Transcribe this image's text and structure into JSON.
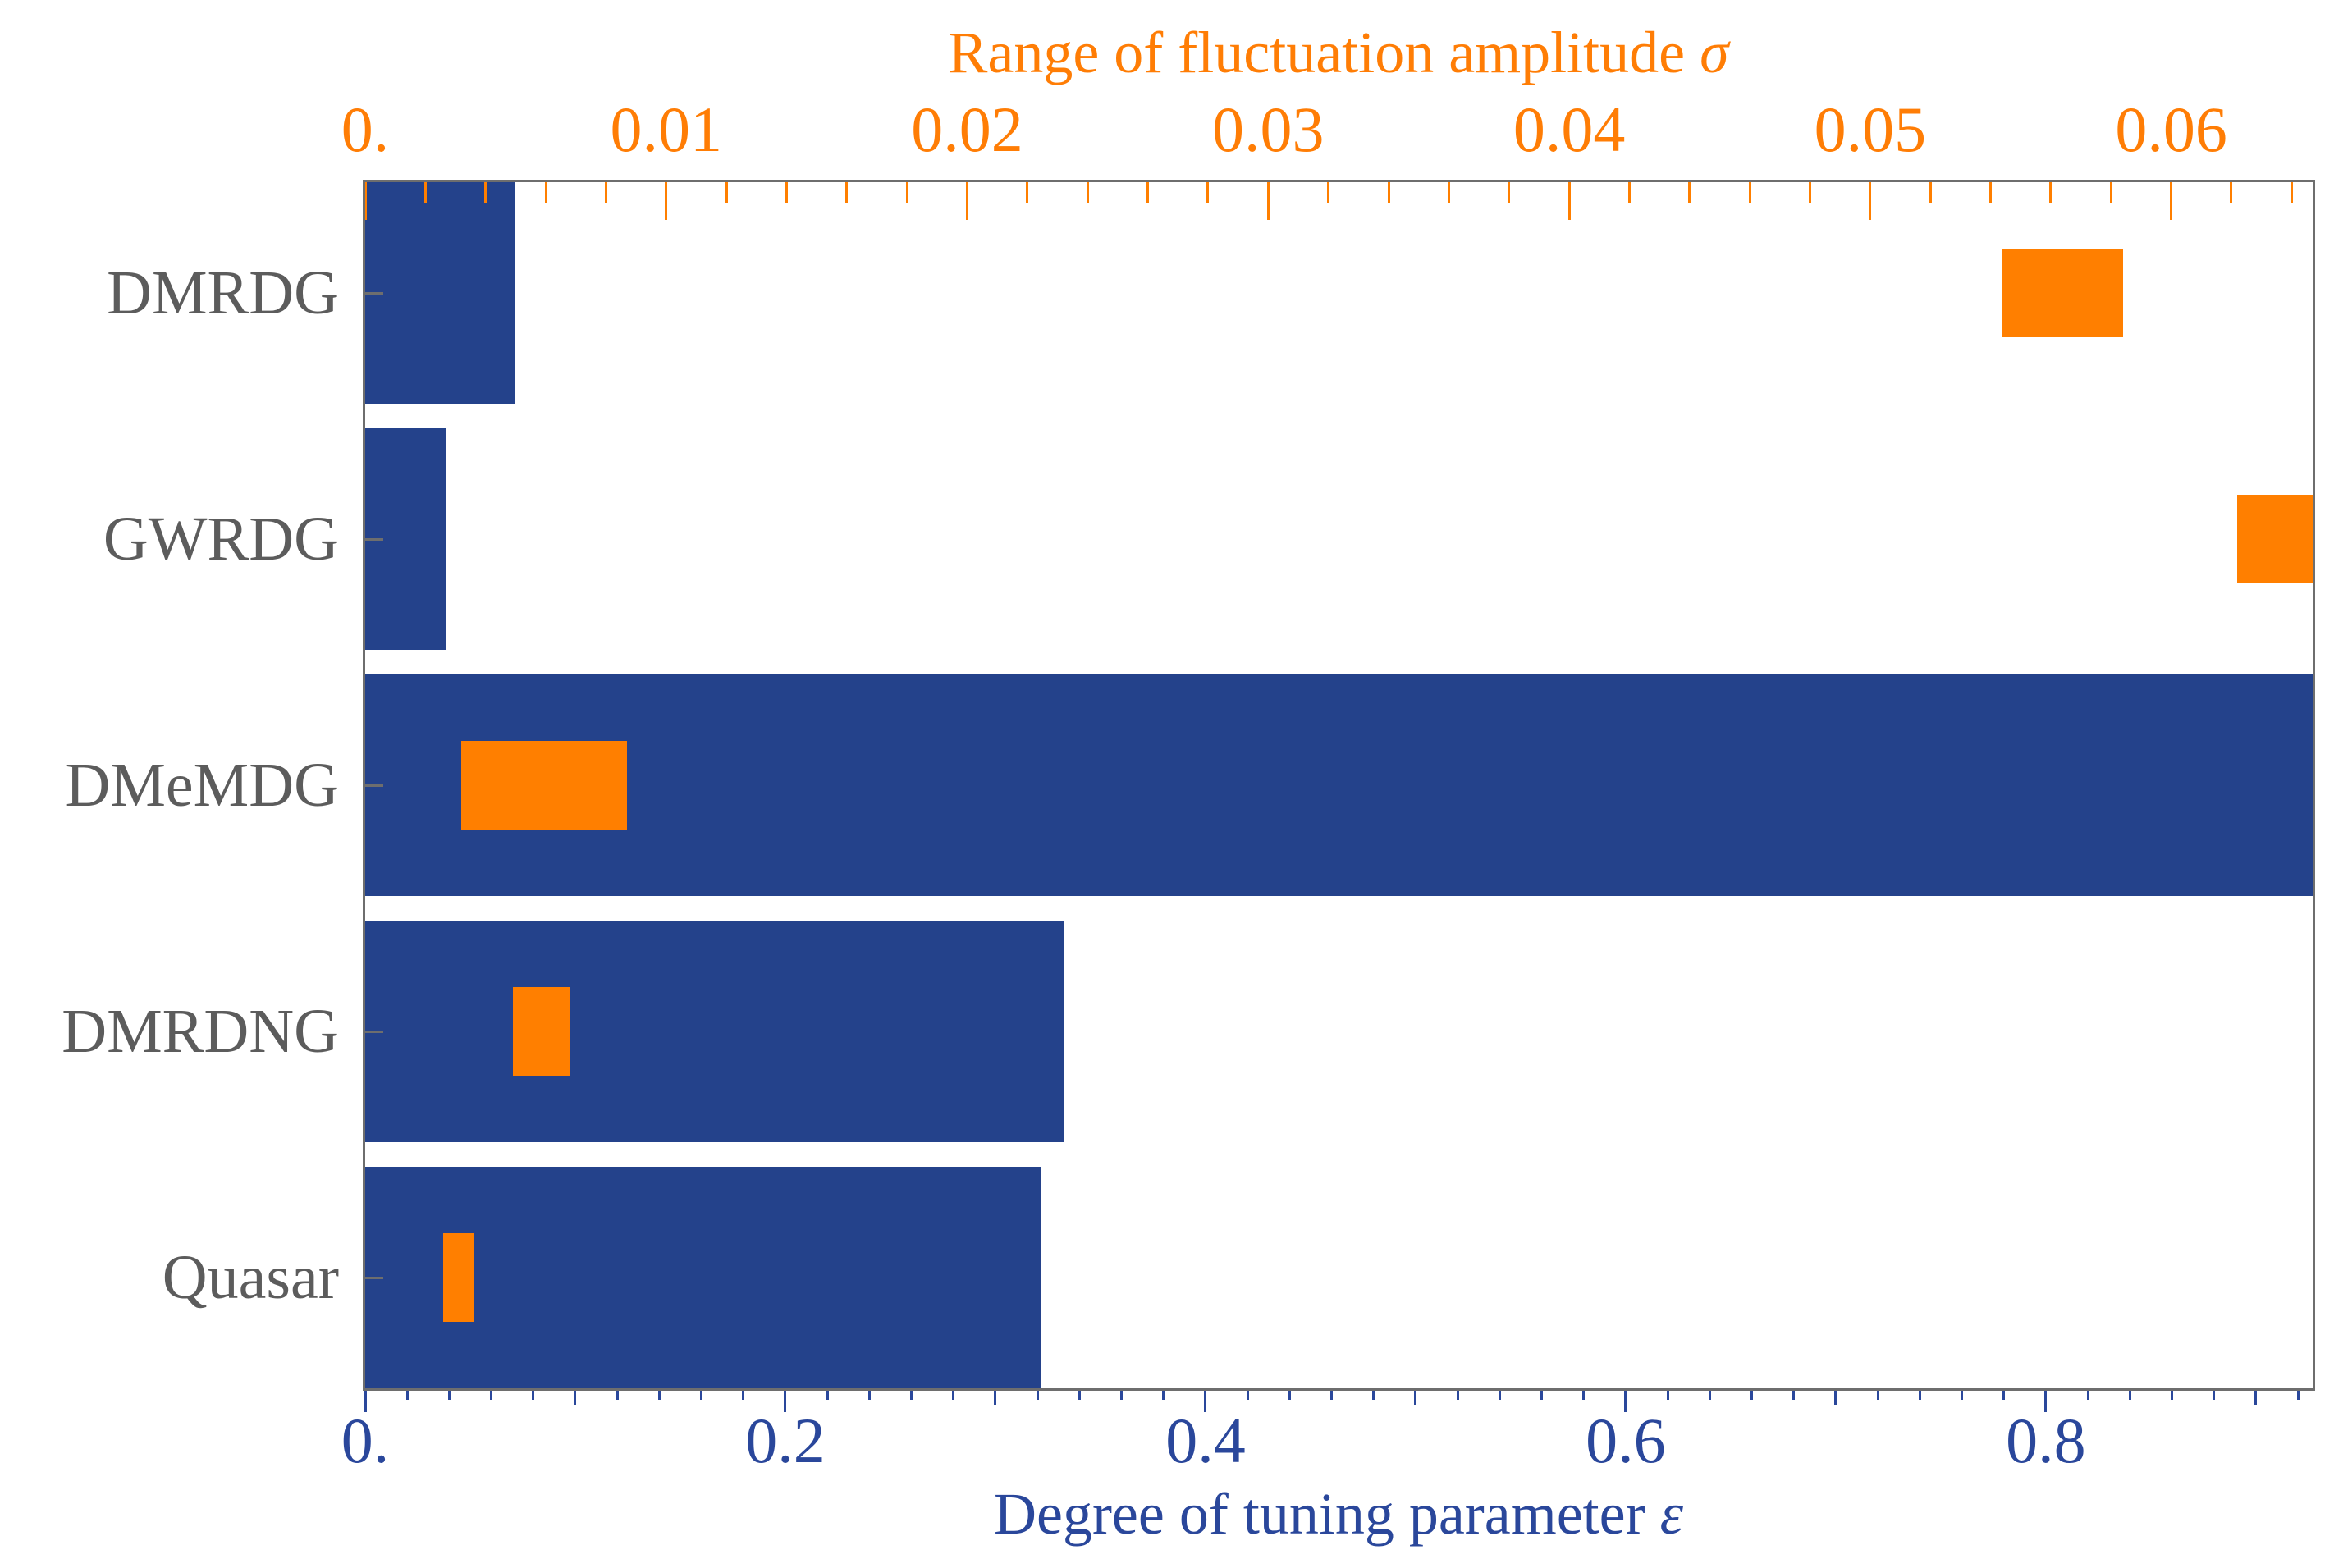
{
  "figure_colors": {
    "bar_blue": "#24428B",
    "range_orange": "#FF7F00",
    "top_axis_text": "#FF7D05",
    "bottom_axis_text": "#2A479B",
    "category_text": "#5C5C5C",
    "frame_gray": "#6E6E6E"
  },
  "top_axis_title_text": "Range of fluctuation amplitude",
  "top_axis_title_symbol": "σ",
  "bottom_axis_title_text": "Degree of tuning parameter",
  "bottom_axis_title_symbol": "ε",
  "chart_data": {
    "type": "bar",
    "orientation": "horizontal",
    "title": "",
    "categories": [
      "DMRDG",
      "GWRDG",
      "DMeMDG",
      "DMRDNG",
      "Quasar"
    ],
    "series": [
      {
        "name": "Degree of tuning parameter ε",
        "style": "solid-bar",
        "axis": "bottom",
        "color": "#24428B",
        "values": [
          0.0715,
          0.0383,
          0.93,
          0.3325,
          0.322
        ],
        "note": "DMeMDG bar runs off-scale and is clipped at the right plot edge (axis max 0.927)"
      },
      {
        "name": "Range of fluctuation amplitude σ",
        "style": "floating-range-block",
        "axis": "top",
        "color": "#FF7F00",
        "ranges": [
          [
            0.0544,
            0.0584
          ],
          [
            0.0622,
            0.0655
          ],
          [
            0.0032,
            0.0087
          ],
          [
            0.0049,
            0.0068
          ],
          [
            0.0026,
            0.0036
          ]
        ],
        "note": "GWRDG range block is clipped at the right plot edge (axis max 0.0647)"
      }
    ],
    "top_axis": {
      "label": "Range of fluctuation amplitude σ",
      "range": [
        0,
        0.0647
      ],
      "major_tick_values": [
        0,
        0.01,
        0.02,
        0.03,
        0.04,
        0.05,
        0.06
      ],
      "major_tick_labels": [
        "0.",
        "0.01",
        "0.02",
        "0.03",
        "0.04",
        "0.05",
        "0.06"
      ],
      "minor_tick_step": 0.002,
      "ticks_direction": "inward-down",
      "color": "#FF7D05"
    },
    "bottom_axis": {
      "label": "Degree of tuning parameter ε",
      "range": [
        0,
        0.927
      ],
      "major_tick_values": [
        0,
        0.2,
        0.4,
        0.6,
        0.8
      ],
      "major_tick_labels": [
        "0.",
        "0.2",
        "0.4",
        "0.6",
        "0.8"
      ],
      "medium_tick_step": 0.1,
      "minor_tick_step": 0.02,
      "ticks_direction": "outward-down",
      "color": "#2A479B"
    },
    "legend": "none",
    "grid": false,
    "frame": true
  }
}
